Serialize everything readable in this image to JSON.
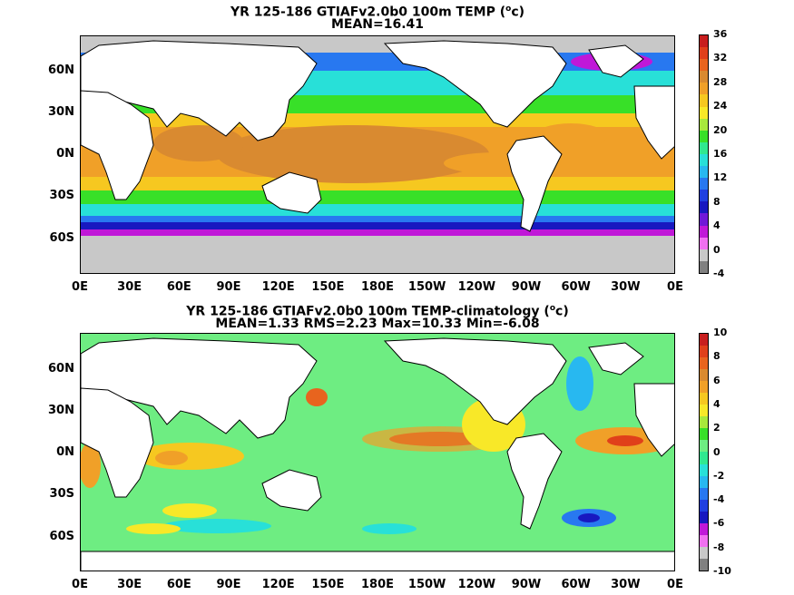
{
  "top_panel": {
    "title_prefix": "YR 125-186 GTIAFv2.0b0 100m TEMP (",
    "title_unit_sup": "o",
    "title_unit": "c",
    "title_suffix": ")",
    "stat_line": "MEAN=16.41",
    "colorbar_labels": [
      "36",
      "32",
      "28",
      "24",
      "20",
      "16",
      "12",
      "8",
      "4",
      "0",
      "-4"
    ],
    "colorbar_colors": [
      "#c81e1e",
      "#e0401a",
      "#e8641e",
      "#d98a30",
      "#f0a028",
      "#f6c820",
      "#f8e828",
      "#a8e83c",
      "#38e028",
      "#30e890",
      "#28e0d8",
      "#28b8f0",
      "#2878f0",
      "#2040e0",
      "#1818c0",
      "#7018d8",
      "#c018d8",
      "#f070f0",
      "#c8c8c8",
      "#808080"
    ]
  },
  "bottom_panel": {
    "title_prefix": "YR 125-186 GTIAFv2.0b0 100m TEMP-climatology (",
    "title_unit_sup": "o",
    "title_unit": "c",
    "title_suffix": ")",
    "stat_line": "MEAN=1.33  RMS=2.23  Max=10.33  Min=-6.08",
    "colorbar_labels": [
      "10",
      "8",
      "6",
      "4",
      "2",
      "0",
      "-2",
      "-4",
      "-6",
      "-8",
      "-10"
    ],
    "colorbar_colors": [
      "#c81e1e",
      "#e0401a",
      "#e8641e",
      "#d98a30",
      "#f0a028",
      "#f6c820",
      "#f8e828",
      "#a8e83c",
      "#38e028",
      "#6eed82",
      "#30e890",
      "#28e0d8",
      "#28b8f0",
      "#2878f0",
      "#2040e0",
      "#1818c0",
      "#c018d8",
      "#f070f0",
      "#c8c8c8",
      "#808080"
    ]
  },
  "axes": {
    "lat_labels": [
      "60N",
      "30N",
      "0N",
      "30S",
      "60S"
    ],
    "lon_labels": [
      "0E",
      "30E",
      "60E",
      "90E",
      "120E",
      "150E",
      "180E",
      "150W",
      "120W",
      "90W",
      "60W",
      "30W",
      "0E"
    ]
  }
}
